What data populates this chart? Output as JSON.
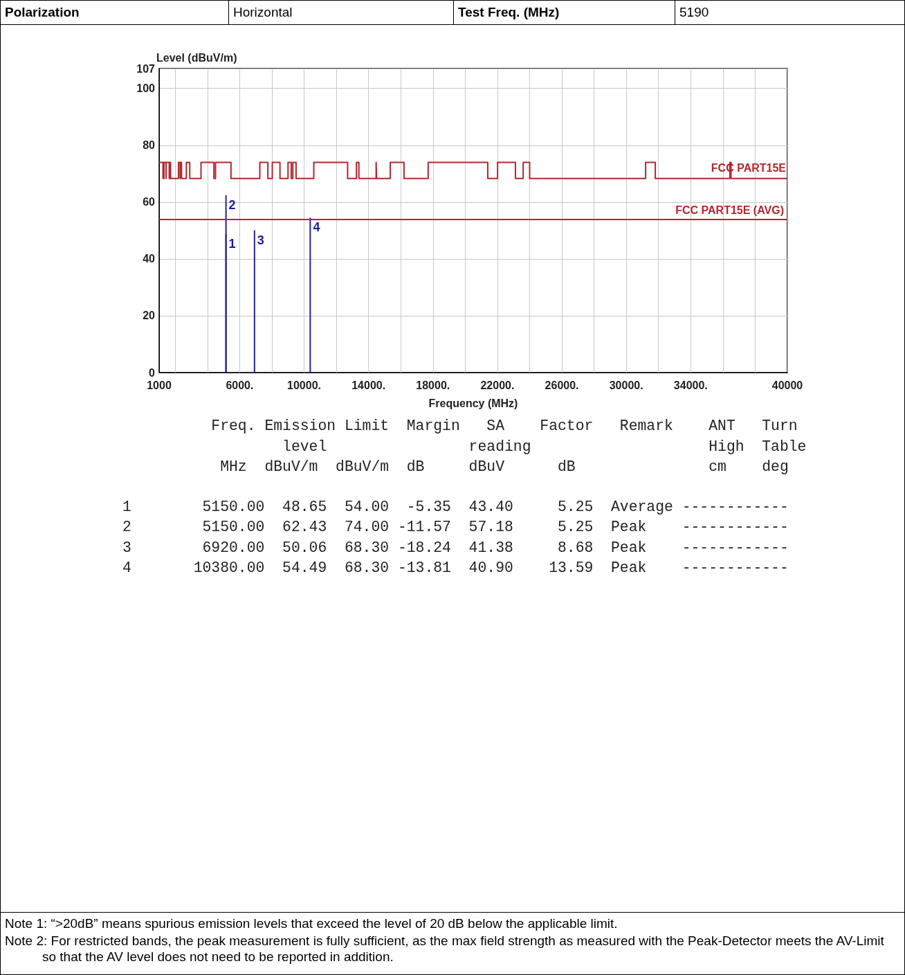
{
  "chart_data": {
    "type": "line",
    "xlabel": "Frequency (MHz)",
    "ylabel": "Level (dBuV/m)",
    "xlim": [
      1000,
      40000
    ],
    "xticks": [
      1000,
      {
        "value": 2000,
        "label": null
      },
      {
        "value": 4000,
        "label": null
      },
      {
        "value": 6000,
        "label": "6000."
      },
      {
        "value": 8000,
        "label": null
      },
      {
        "value": 10000,
        "label": "10000."
      },
      {
        "value": 12000,
        "label": null
      },
      {
        "value": 14000,
        "label": "14000."
      },
      {
        "value": 16000,
        "label": null
      },
      {
        "value": 18000,
        "label": "18000."
      },
      {
        "value": 20000,
        "label": null
      },
      {
        "value": 22000,
        "label": "22000."
      },
      {
        "value": 24000,
        "label": null
      },
      {
        "value": 26000,
        "label": "26000."
      },
      {
        "value": 28000,
        "label": null
      },
      {
        "value": 30000,
        "label": "30000."
      },
      {
        "value": 32000,
        "label": null
      },
      {
        "value": 34000,
        "label": "34000."
      },
      {
        "value": 36000,
        "label": null
      },
      {
        "value": 38000,
        "label": null
      },
      40000
    ],
    "ylim": [
      0,
      107
    ],
    "yticks": [
      0,
      20,
      40,
      60,
      80,
      100,
      107
    ],
    "grid": true,
    "legend": false,
    "marker": "none",
    "series": [
      {
        "name": "FCC PART15E",
        "color": "#b3262c",
        "x": [
          1000,
          1240,
          1240,
          1300,
          1300,
          1427,
          1427,
          1435,
          1435,
          1626.5,
          1626.5,
          1660,
          1660,
          1710,
          1710,
          2200,
          2200,
          2300,
          2300,
          2310,
          2310,
          2390,
          2390,
          2690,
          2690,
          2900,
          2900,
          3600,
          3600,
          4400,
          4400,
          4500,
          4500,
          5150,
          5350,
          5460,
          5460,
          7250,
          7250,
          7750,
          7750,
          8025,
          8025,
          8500,
          8500,
          9000,
          9000,
          9200,
          9200,
          9300,
          9300,
          9500,
          9500,
          10600,
          10600,
          12700,
          12700,
          13250,
          13250,
          13400,
          13400,
          14470,
          14470,
          14500,
          14500,
          15350,
          15350,
          16200,
          16200,
          17700,
          17700,
          21400,
          21400,
          22010,
          22010,
          23120,
          23120,
          23600,
          23600,
          24000,
          24000,
          31200,
          31200,
          31800,
          31800,
          36430,
          36430,
          36500,
          36500,
          40000
        ],
        "values": [
          74,
          74,
          68.3,
          68.3,
          74,
          74,
          68.3,
          68.3,
          74,
          74,
          68.3,
          68.3,
          74,
          74,
          68.3,
          68.3,
          74,
          74,
          68.3,
          68.3,
          74,
          74,
          68.3,
          68.3,
          74,
          74,
          68.3,
          68.3,
          74,
          74,
          68.3,
          68.3,
          74,
          74,
          74,
          74,
          68.3,
          68.3,
          74,
          74,
          68.3,
          68.3,
          74,
          74,
          68.3,
          68.3,
          74,
          74,
          68.3,
          68.3,
          74,
          74,
          68.3,
          68.3,
          74,
          74,
          68.3,
          68.3,
          74,
          74,
          68.3,
          68.3,
          74,
          74,
          68.3,
          68.3,
          74,
          74,
          68.3,
          68.3,
          74,
          74,
          68.3,
          68.3,
          74,
          74,
          68.3,
          68.3,
          74,
          74,
          68.3,
          68.3,
          74,
          74,
          68.3,
          68.3,
          74,
          74,
          68.3,
          68.3
        ]
      },
      {
        "type": "bar",
        "color": "#22229a",
        "x": [
          5150,
          6920,
          10380
        ],
        "values": [
          62.43,
          50.06,
          54.49
        ]
      },
      {
        "type": "bar",
        "color": "#22229a",
        "x": [
          5150
        ],
        "values": [
          48.65
        ]
      }
    ],
    "ref_lines": [
      {
        "axis": "y",
        "value": 54,
        "label": "FCC PART15E (AVG)",
        "color": "#b3262c"
      }
    ],
    "annotations": [
      "Polarization",
      "Horizontal",
      "Test Freq. (MHz)",
      "5190",
      "          Freq. Emission Limit  Margin   SA    Factor   Remark    ANT   Turn",
      "                  level                reading                    High  Table",
      "           MHz  dBuV/m  dBuV/m  dB     dBuV      dB               cm    deg",
      "1        5150.00  48.65  54.00  -5.35  43.40     5.25  Average ------------",
      "2        5150.00  62.43  74.00 -11.57  57.18     5.25  Peak    ------------",
      "3        6920.00  50.06  68.30 -18.24  41.38     8.68  Peak    ------------",
      "4       10380.00  54.49  68.30 -13.81  40.90    13.59  Peak    ------------",
      "Note 1: “>20dB” means spurious emission levels that exceed the level of 20 dB below the applicable limit.",
      "Note 2: For restricted bands, the peak measurement is fully sufficient, as the max field strength as measured with the Peak-Detector meets the AV-Limit so that the AV level does not need to be reported in addition.",
      {
        "text": "1",
        "x": 5150,
        "y": 48.65
      },
      {
        "text": "2",
        "x": 5150,
        "y": 62.43
      },
      {
        "text": "3",
        "x": 6920,
        "y": 50.06
      },
      {
        "text": "4",
        "x": 10380,
        "y": 54.49
      }
    ]
  }
}
